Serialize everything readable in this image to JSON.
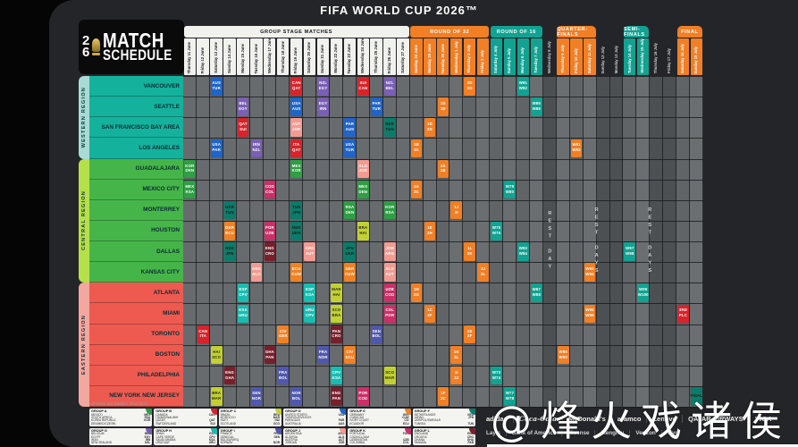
{
  "title": "FIFA WORLD CUP 2026™",
  "logo": {
    "digit_top": "2",
    "digit_bottom": "6",
    "word1": "MATCH",
    "word2": "SCHEDULE"
  },
  "note_times": "All times are Eastern Time (ET).",
  "watermark": "@烽火戏诸侯",
  "accents": {
    "orange": "#f07f26",
    "teal": "#12a291",
    "final_gold": "#b8a724",
    "white_header": "#f1f1ee"
  },
  "chart_data": {
    "type": "table",
    "title": "FIFA World Cup 2026 Match Schedule",
    "regions": [
      {
        "name": "WESTERN REGION",
        "band": "#a7dbd4",
        "cell": "#14b29c",
        "cities": [
          "VANCOUVER",
          "SEATTLE",
          "SAN FRANCISCO BAY AREA",
          "LOS ANGELES"
        ]
      },
      {
        "name": "CENTRAL REGION",
        "band": "#b5e04b",
        "cell": "#46b549",
        "cities": [
          "GUADALAJARA",
          "MEXICO CITY",
          "MONTERREY",
          "HOUSTON",
          "DALLAS",
          "KANSAS CITY"
        ]
      },
      {
        "name": "EASTERN REGION",
        "band": "#f3a79e",
        "cell": "#ee5a50",
        "cities": [
          "ATLANTA",
          "MIAMI",
          "TORONTO",
          "BOSTON",
          "PHILADELPHIA",
          "NEW YORK NEW JERSEY"
        ]
      }
    ],
    "stages": [
      {
        "label": "GROUP STAGE MATCHES",
        "start": 0,
        "cols": 17,
        "kind": "g"
      },
      {
        "label": "ROUND OF 32",
        "start": 17,
        "cols": 6,
        "kind": "o"
      },
      {
        "label": "ROUND OF 16",
        "start": 23,
        "cols": 4,
        "kind": "t"
      },
      {
        "label": "QUARTER-FINALS",
        "start": 28,
        "cols": 3,
        "kind": "q"
      },
      {
        "label": "SEMI-FINALS",
        "start": 33,
        "cols": 2,
        "kind": "s"
      },
      {
        "label": "FINAL",
        "start": 37,
        "cols": 2,
        "kind": "f"
      }
    ],
    "rest_labels": [
      "REST DAY",
      "REST DAYS",
      "REST DAYS"
    ],
    "dates": [
      [
        "Thursday",
        "11 June",
        "g"
      ],
      [
        "Friday",
        "12 June",
        "g"
      ],
      [
        "Saturday",
        "13 June",
        "g"
      ],
      [
        "Sunday",
        "14 June",
        "g"
      ],
      [
        "Monday",
        "15 June",
        "g"
      ],
      [
        "Tuesday",
        "16 June",
        "g"
      ],
      [
        "Wednesday",
        "17 June",
        "g"
      ],
      [
        "Thursday",
        "18 June",
        "g"
      ],
      [
        "Friday",
        "19 June",
        "g"
      ],
      [
        "Saturday",
        "20 June",
        "g"
      ],
      [
        "Sunday",
        "21 June",
        "g"
      ],
      [
        "Monday",
        "22 June",
        "g"
      ],
      [
        "Tuesday",
        "23 June",
        "g"
      ],
      [
        "Wednesday",
        "24 June",
        "g"
      ],
      [
        "Thursday",
        "25 June",
        "g"
      ],
      [
        "Friday",
        "26 June",
        "g"
      ],
      [
        "Saturday",
        "27 June",
        "g"
      ],
      [
        "Sunday",
        "28 June",
        "o"
      ],
      [
        "Monday",
        "29 June",
        "o"
      ],
      [
        "Tuesday",
        "30 June",
        "o"
      ],
      [
        "Wednesday",
        "1 July",
        "o"
      ],
      [
        "Thursday",
        "2 July",
        "o"
      ],
      [
        "Friday",
        "3 July",
        "o"
      ],
      [
        "Saturday",
        "4 July",
        "t"
      ],
      [
        "Sunday",
        "5 July",
        "t"
      ],
      [
        "Monday",
        "6 July",
        "t"
      ],
      [
        "Tuesday",
        "7 July",
        "t"
      ],
      [
        "Wednesday",
        "8 July",
        "r"
      ],
      [
        "Thursday",
        "9 July",
        "q"
      ],
      [
        "Friday",
        "10 July",
        "q"
      ],
      [
        "Saturday",
        "11 July",
        "q"
      ],
      [
        "Sunday",
        "12 July",
        "r"
      ],
      [
        "Monday",
        "13 July",
        "r"
      ],
      [
        "Tuesday",
        "14 July",
        "s"
      ],
      [
        "Wednesday",
        "15 July",
        "s"
      ],
      [
        "Thursday",
        "16 July",
        "r"
      ],
      [
        "Friday",
        "17 July",
        "r"
      ],
      [
        "Saturday",
        "18 July",
        "f"
      ],
      [
        "Sunday",
        "19 July",
        "f"
      ]
    ],
    "group_colors": {
      "A": "#2f9e45",
      "B": "#d8232a",
      "C": "#c3d034",
      "D": "#2064c8",
      "E": "#f08124",
      "F": "#0b7b6a",
      "G": "#7a5fb5",
      "H": "#17bdb0",
      "I": "#5058ad",
      "J": "#f29b92",
      "K": "#cb2f67",
      "L": "#77202c"
    },
    "knockout_colors": {
      "O": "#f07f26",
      "T": "#12a291",
      "Q": "#f07f26",
      "S": "#12a291",
      "B": "#f07f26",
      "F": "#b8a724"
    },
    "matches": [
      [
        0,
        3,
        "D",
        [
          "AUS",
          "TUR"
        ]
      ],
      [
        0,
        9,
        "B",
        [
          "CAN",
          "QAT"
        ]
      ],
      [
        0,
        11,
        "G",
        [
          "NZL",
          "EGY"
        ]
      ],
      [
        0,
        14,
        "B",
        [
          "SUI",
          "CAN"
        ]
      ],
      [
        0,
        16,
        "G",
        [
          "NZL",
          "BEL"
        ]
      ],
      [
        1,
        5,
        "G",
        [
          "BEL",
          "EGY"
        ]
      ],
      [
        1,
        9,
        "D",
        [
          "USA",
          "AUS"
        ]
      ],
      [
        1,
        11,
        "G",
        [
          "EGY",
          "IRN"
        ]
      ],
      [
        1,
        15,
        "D",
        [
          "PAR",
          "TUR"
        ]
      ],
      [
        2,
        5,
        "B",
        [
          "QAT",
          "SUI"
        ]
      ],
      [
        2,
        9,
        "J",
        [
          "AUT",
          "JOR"
        ]
      ],
      [
        2,
        13,
        "D",
        [
          "PAR",
          "AUS"
        ]
      ],
      [
        2,
        16,
        "F",
        [
          "NED",
          "TUN"
        ]
      ],
      [
        3,
        3,
        "D",
        [
          "USA",
          "PAR"
        ]
      ],
      [
        3,
        6,
        "G",
        [
          "IRN",
          "NZL"
        ]
      ],
      [
        3,
        9,
        "B",
        [
          "ITA",
          "QAT"
        ]
      ],
      [
        3,
        13,
        "D",
        [
          "USA",
          "TUR"
        ]
      ],
      [
        4,
        1,
        "A",
        [
          "KOR",
          "DEN"
        ]
      ],
      [
        4,
        9,
        "A",
        [
          "MEX",
          "KOR"
        ]
      ],
      [
        4,
        14,
        "J",
        [
          "ALG",
          "JOR"
        ]
      ],
      [
        5,
        1,
        "A",
        [
          "MEX",
          "RSA"
        ]
      ],
      [
        5,
        7,
        "K",
        [
          "COD",
          "COL"
        ]
      ],
      [
        5,
        14,
        "A",
        [
          "MEX",
          "DEN"
        ]
      ],
      [
        6,
        4,
        "F",
        [
          "UKR",
          "TUN"
        ]
      ],
      [
        6,
        9,
        "F",
        [
          "TUN",
          "JPN"
        ]
      ],
      [
        6,
        13,
        "A",
        [
          "RSA",
          "DEN"
        ]
      ],
      [
        6,
        16,
        "A",
        [
          "KOR",
          "RSA"
        ]
      ],
      [
        7,
        4,
        "E",
        [
          "GER",
          "ECU"
        ]
      ],
      [
        7,
        7,
        "K",
        [
          "POR",
          "UZB"
        ]
      ],
      [
        7,
        9,
        "F",
        [
          "NED",
          "UKR"
        ]
      ],
      [
        7,
        14,
        "C",
        [
          "BRA",
          "HAI"
        ]
      ],
      [
        8,
        4,
        "F",
        [
          "NED",
          "JPN"
        ]
      ],
      [
        8,
        7,
        "L",
        [
          "ENG",
          "CRO"
        ]
      ],
      [
        8,
        10,
        "J",
        [
          "ARG",
          "AUT"
        ]
      ],
      [
        8,
        13,
        "F",
        [
          "JPN",
          "UKR"
        ]
      ],
      [
        8,
        16,
        "J",
        [
          "JOR",
          "ARG"
        ]
      ],
      [
        9,
        6,
        "J",
        [
          "ARG",
          "ALG"
        ]
      ],
      [
        9,
        9,
        "E",
        [
          "ECU",
          "CUW"
        ]
      ],
      [
        9,
        13,
        "E",
        [
          "GER",
          "CUW"
        ]
      ],
      [
        9,
        16,
        "J",
        [
          "ALG",
          "AUT"
        ]
      ],
      [
        10,
        5,
        "H",
        [
          "ESP",
          "CPV"
        ]
      ],
      [
        10,
        10,
        "H",
        [
          "ESP",
          "KSA"
        ]
      ],
      [
        10,
        12,
        "C",
        [
          "MAR",
          "HAI"
        ]
      ],
      [
        10,
        16,
        "K",
        [
          "UZB",
          "COD"
        ]
      ],
      [
        11,
        5,
        "H",
        [
          "KSA",
          "URU"
        ]
      ],
      [
        11,
        10,
        "H",
        [
          "URU",
          "CPV"
        ]
      ],
      [
        11,
        12,
        "C",
        [
          "SCO",
          "BRA"
        ]
      ],
      [
        11,
        16,
        "K",
        [
          "COL",
          "POR"
        ]
      ],
      [
        12,
        2,
        "B",
        [
          "CAN",
          "ITA"
        ]
      ],
      [
        12,
        8,
        "E",
        [
          "CIV",
          "GER"
        ]
      ],
      [
        12,
        12,
        "L",
        [
          "PAN",
          "CRO"
        ]
      ],
      [
        12,
        15,
        "I",
        [
          "SEN",
          "BOL"
        ]
      ],
      [
        13,
        3,
        "C",
        [
          "HAI",
          "SCO"
        ]
      ],
      [
        13,
        7,
        "L",
        [
          "GHA",
          "PAN"
        ]
      ],
      [
        13,
        11,
        "I",
        [
          "FRA",
          "NOR"
        ]
      ],
      [
        13,
        13,
        "E",
        [
          "CIV",
          "ECU"
        ]
      ],
      [
        14,
        4,
        "L",
        [
          "ENG",
          "GHA"
        ]
      ],
      [
        14,
        8,
        "I",
        [
          "FRA",
          "BOL"
        ]
      ],
      [
        14,
        12,
        "H",
        [
          "CPV",
          "KSA"
        ]
      ],
      [
        14,
        16,
        "C",
        [
          "SCO",
          "MAR"
        ]
      ],
      [
        15,
        3,
        "C",
        [
          "BRA",
          "MAR"
        ]
      ],
      [
        15,
        6,
        "I",
        [
          "SEN",
          "NOR"
        ]
      ],
      [
        15,
        9,
        "I",
        [
          "NOR",
          "BOL"
        ]
      ],
      [
        15,
        12,
        "L",
        [
          "ENG",
          "PAN"
        ]
      ],
      [
        15,
        14,
        "K",
        [
          "POR",
          "COD"
        ]
      ],
      [
        5,
        18,
        "O",
        [
          "1A",
          "3C"
        ]
      ],
      [
        3,
        18,
        "O",
        [
          "1B",
          "3A"
        ]
      ],
      [
        10,
        18,
        "O",
        [
          "1H",
          "2G"
        ]
      ],
      [
        7,
        19,
        "O",
        [
          "1E",
          "3H"
        ]
      ],
      [
        2,
        19,
        "O",
        [
          "1D",
          "3G"
        ]
      ],
      [
        11,
        19,
        "O",
        [
          "1C",
          "3F"
        ]
      ],
      [
        1,
        20,
        "O",
        [
          "1G",
          "3D"
        ]
      ],
      [
        4,
        20,
        "O",
        [
          "2A",
          "2B"
        ]
      ],
      [
        15,
        20,
        "O",
        [
          "1F",
          "2C"
        ]
      ],
      [
        14,
        21,
        "O",
        [
          "1I",
          "3J"
        ]
      ],
      [
        6,
        21,
        "O",
        [
          "1J",
          "2I"
        ]
      ],
      [
        13,
        21,
        "O",
        [
          "1K",
          "3L"
        ]
      ],
      [
        0,
        22,
        "O",
        [
          "2D",
          "2G"
        ]
      ],
      [
        8,
        22,
        "O",
        [
          "1L",
          "3K"
        ]
      ],
      [
        12,
        22,
        "O",
        [
          "2E",
          "2F"
        ]
      ],
      [
        9,
        23,
        "O",
        [
          "2J",
          "2L"
        ]
      ],
      [
        14,
        24,
        "T",
        [
          "W73",
          "W74"
        ]
      ],
      [
        7,
        24,
        "T",
        [
          "W75",
          "W76"
        ]
      ],
      [
        15,
        25,
        "T",
        [
          "W77",
          "W78"
        ]
      ],
      [
        5,
        25,
        "T",
        [
          "W79",
          "W80"
        ]
      ],
      [
        0,
        26,
        "T",
        [
          "W81",
          "W82"
        ]
      ],
      [
        8,
        26,
        "T",
        [
          "W83",
          "W84"
        ]
      ],
      [
        1,
        27,
        "T",
        [
          "W85",
          "W86"
        ]
      ],
      [
        10,
        27,
        "T",
        [
          "W87",
          "W88"
        ]
      ],
      [
        13,
        29,
        "Q",
        [
          "W89",
          "W90"
        ]
      ],
      [
        3,
        30,
        "Q",
        [
          "W91",
          "W92"
        ]
      ],
      [
        9,
        31,
        "Q",
        [
          "W93",
          "W94"
        ]
      ],
      [
        11,
        31,
        "Q",
        [
          "W95",
          "W96"
        ]
      ],
      [
        8,
        34,
        "S",
        [
          "W97",
          "W98"
        ]
      ],
      [
        10,
        35,
        "S",
        [
          "W99",
          "W100"
        ]
      ],
      [
        11,
        38,
        "B",
        [
          "3RD",
          "PLC"
        ]
      ],
      [
        15,
        39,
        "F",
        [
          "FINAL"
        ]
      ]
    ]
  },
  "groups_legend": [
    {
      "name": "GROUP A",
      "color": "#2f9e45",
      "teams": [
        [
          "MEXICO",
          "MEX"
        ],
        [
          "SOUTH AFRICA",
          "RSA"
        ],
        [
          "KOREA REPUBLIC",
          "KOR"
        ],
        [
          "DEN/MKD/CZE/IRL",
          ""
        ]
      ]
    },
    {
      "name": "GROUP B",
      "color": "#d8232a",
      "teams": [
        [
          "CANADA",
          "CAN"
        ],
        [
          "ITA/NIR/WAL/BIH",
          ""
        ],
        [
          "QATAR",
          "QAT"
        ],
        [
          "SWITZERLAND",
          "SUI"
        ]
      ]
    },
    {
      "name": "GROUP C",
      "color": "#c3d034",
      "teams": [
        [
          "BRAZIL",
          "BRA"
        ],
        [
          "MOROCCO",
          "MAR"
        ],
        [
          "HAITI",
          "HAI"
        ],
        [
          "SCOTLAND",
          "SCO"
        ]
      ]
    },
    {
      "name": "GROUP D",
      "color": "#2064c8",
      "teams": [
        [
          "UNITED STATES",
          "USA"
        ],
        [
          "TUR/ROU/SVK/KOS",
          ""
        ],
        [
          "PARAGUAY",
          "PAR"
        ],
        [
          "AUSTRALIA",
          "AUS"
        ]
      ]
    },
    {
      "name": "GROUP E",
      "color": "#f08124",
      "teams": [
        [
          "GERMANY",
          "GER"
        ],
        [
          "CURACAO",
          "CUW"
        ],
        [
          "IVORY COAST",
          "CIV"
        ],
        [
          "ECUADOR",
          "ECU"
        ]
      ]
    },
    {
      "name": "GROUP F",
      "color": "#0b7b6a",
      "teams": [
        [
          "NETHERLANDS",
          "NED"
        ],
        [
          "JAPAN",
          "JPN"
        ],
        [
          "UKR/POL/SWE/ALB",
          ""
        ],
        [
          "TUNISIA",
          "TUN"
        ]
      ]
    },
    {
      "name": "GROUP G",
      "color": "#7a5fb5",
      "teams": [
        [
          "BELGIUM",
          "BEL"
        ],
        [
          "EGYPT",
          "EGY"
        ],
        [
          "IRAN",
          "IRN"
        ],
        [
          "NEW ZEALAND",
          "NZL"
        ]
      ]
    },
    {
      "name": "GROUP H",
      "color": "#17bdb0",
      "teams": [
        [
          "SPAIN",
          "ESP"
        ],
        [
          "CAPE VERDE",
          "CPV"
        ],
        [
          "SAUDI ARABIA",
          "KSA"
        ],
        [
          "URUGUAY",
          "URU"
        ]
      ]
    },
    {
      "name": "GROUP I",
      "color": "#5058ad",
      "teams": [
        [
          "FRANCE",
          "FRA"
        ],
        [
          "SENEGAL",
          "SEN"
        ],
        [
          "BOL/SUR/IRQ",
          ""
        ],
        [
          "NORWAY",
          "NOR"
        ]
      ]
    },
    {
      "name": "GROUP J",
      "color": "#f29b92",
      "teams": [
        [
          "ARGENTINA",
          "ARG"
        ],
        [
          "ALGERIA",
          "ALG"
        ],
        [
          "AUSTRIA",
          "AUT"
        ],
        [
          "JORDAN",
          "JOR"
        ]
      ]
    },
    {
      "name": "GROUP K",
      "color": "#cb2f67",
      "teams": [
        [
          "PORTUGAL",
          "POR"
        ],
        [
          "COD/NCL/JAM",
          ""
        ],
        [
          "UZBEKISTAN",
          "UZB"
        ],
        [
          "COLOMBIA",
          "COL"
        ]
      ]
    },
    {
      "name": "GROUP L",
      "color": "#77202c",
      "teams": [
        [
          "ENGLAND",
          "ENG"
        ],
        [
          "CROATIA",
          "CRO"
        ],
        [
          "GHANA",
          "GHA"
        ],
        [
          "PANAMA",
          "PAN"
        ]
      ]
    }
  ],
  "sponsors": {
    "row1": [
      "adidas",
      "Coca-Cola",
      "McDonald's",
      "aramco",
      "Lenovo",
      "QATAR AIRWAYS",
      "VISA"
    ],
    "row2": [
      "Lay's",
      "Bank of America",
      "Hisense",
      "Mengniu",
      "Verizon",
      "vivo"
    ]
  }
}
